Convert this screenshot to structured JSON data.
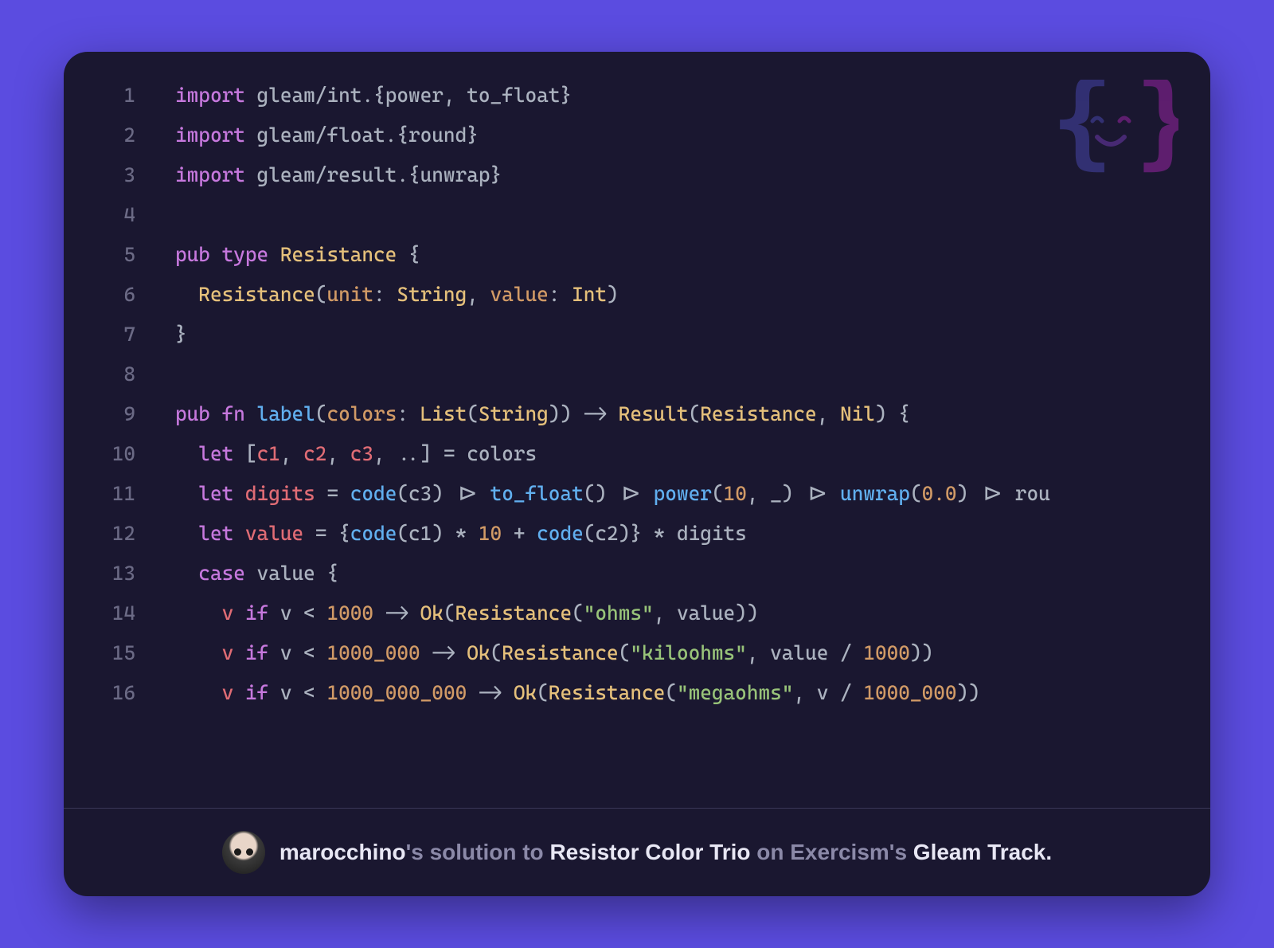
{
  "card": {
    "background": "#1a1730",
    "lines": [
      {
        "n": 1,
        "html": "<span class='kw'>import</span> <span class='tx'>gleam/int.{</span><span class='tx'>power</span><span class='tx'>, </span><span class='tx'>to_float</span><span class='tx'>}</span>"
      },
      {
        "n": 2,
        "html": "<span class='kw'>import</span> <span class='tx'>gleam/float.{</span><span class='tx'>round</span><span class='tx'>}</span>"
      },
      {
        "n": 3,
        "html": "<span class='kw'>import</span> <span class='tx'>gleam/result.{</span><span class='tx'>unwrap</span><span class='tx'>}</span>"
      },
      {
        "n": 4,
        "html": ""
      },
      {
        "n": 5,
        "html": "<span class='kw'>pub type</span> <span class='ty'>Resistance</span> <span class='tx'>{</span>"
      },
      {
        "n": 6,
        "html": "  <span class='ty'>Resistance</span><span class='tx'>(</span><span class='pn'>unit</span><span class='tx'>: </span><span class='ty'>String</span><span class='tx'>, </span><span class='pn'>value</span><span class='tx'>: </span><span class='ty'>Int</span><span class='tx'>)</span>"
      },
      {
        "n": 7,
        "html": "<span class='tx'>}</span>"
      },
      {
        "n": 8,
        "html": ""
      },
      {
        "n": 9,
        "html": "<span class='kw'>pub fn</span> <span class='fn'>label</span><span class='tx'>(</span><span class='pn'>colors</span><span class='tx'>: </span><span class='ty'>List</span><span class='tx'>(</span><span class='ty'>String</span><span class='tx'>)) -> </span><span class='ty'>Result</span><span class='tx'>(</span><span class='ty'>Resistance</span><span class='tx'>, </span><span class='ty'>Nil</span><span class='tx'>) {</span>"
      },
      {
        "n": 10,
        "html": "  <span class='kw'>let</span> <span class='tx'>[</span><span class='vr'>c1</span><span class='tx'>, </span><span class='vr'>c2</span><span class='tx'>, </span><span class='vr'>c3</span><span class='tx'>, ..] = colors</span>"
      },
      {
        "n": 11,
        "html": "  <span class='kw'>let</span> <span class='vr'>digits</span> <span class='tx'>= </span><span class='fn'>code</span><span class='tx'>(c3) </span><span class='op'>|></span> <span class='fn'>to_float</span><span class='tx'>() </span><span class='op'>|></span> <span class='fn'>power</span><span class='tx'>(</span><span class='nm'>10</span><span class='tx'>, _) </span><span class='op'>|></span> <span class='fn'>unwrap</span><span class='tx'>(</span><span class='nm'>0.0</span><span class='tx'>) </span><span class='op'>|></span> <span class='tx'>rou</span>"
      },
      {
        "n": 12,
        "html": "  <span class='kw'>let</span> <span class='vr'>value</span> <span class='tx'>= {</span><span class='fn'>code</span><span class='tx'>(c1) * </span><span class='nm'>10</span><span class='tx'> + </span><span class='fn'>code</span><span class='tx'>(c2)} * digits</span>"
      },
      {
        "n": 13,
        "html": "  <span class='kw'>case</span> <span class='tx'>value {</span>"
      },
      {
        "n": 14,
        "html": "    <span class='vr'>v</span> <span class='kw'>if</span> <span class='tx'>v &lt; </span><span class='nm'>1000</span> <span class='op'>-></span> <span class='ty'>Ok</span><span class='tx'>(</span><span class='ty'>Resistance</span><span class='tx'>(</span><span class='st'>\"ohms\"</span><span class='tx'>, value))</span>"
      },
      {
        "n": 15,
        "html": "    <span class='vr'>v</span> <span class='kw'>if</span> <span class='tx'>v &lt; </span><span class='nm'>1000_000</span> <span class='op'>-></span> <span class='ty'>Ok</span><span class='tx'>(</span><span class='ty'>Resistance</span><span class='tx'>(</span><span class='st'>\"kiloohms\"</span><span class='tx'>, value / </span><span class='nm'>1000</span><span class='tx'>))</span>"
      },
      {
        "n": 16,
        "html": "    <span class='vr'>v</span> <span class='kw'>if</span> <span class='tx'>v &lt; </span><span class='nm'>1000_000_000</span> <span class='op'>-></span> <span class='ty'>Ok</span><span class='tx'>(</span><span class='ty'>Resistance</span><span class='tx'>(</span><span class='st'>\"megaohms\"</span><span class='tx'>, v / </span><span class='nm'>1000_000</span><span class='tx'>))</span>"
      }
    ],
    "line_num_color": "#6b6a85",
    "syntax": {
      "keyword": "#c678dd",
      "function": "#61afef",
      "type": "#e5c07b",
      "param": "#d19a66",
      "operator": "#abb2bf",
      "variable": "#e06c75",
      "number": "#d19a66",
      "string": "#98c379",
      "text": "#abb2bf"
    }
  },
  "footer": {
    "username": "marocchino",
    "middle1": "'s solution to ",
    "exercise": "Resistor Color Trio",
    "middle2": " on Exercism's ",
    "track": "Gleam Track."
  },
  "logo": {
    "brace_left_color": "#3d3b8f",
    "brace_right_color": "#7b2289"
  },
  "page": {
    "background": "#5b4ce0"
  }
}
